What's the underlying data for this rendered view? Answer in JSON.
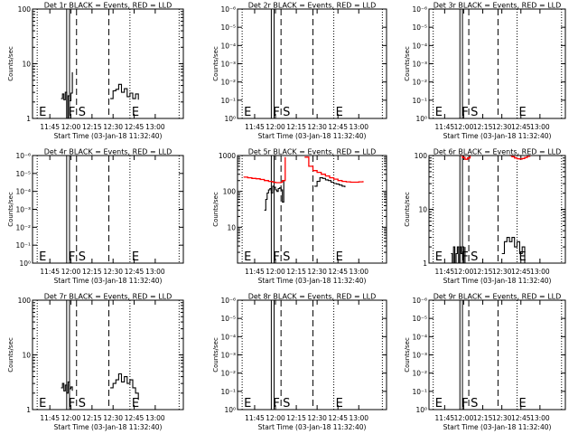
{
  "figure": {
    "x_tick_labels": [
      "11:45",
      "12:00",
      "12:15",
      "12:30",
      "12:45",
      "13:00"
    ],
    "x_label": "Start Time (03-Jan-18 11:32:40)",
    "y_label": "Counts/sec",
    "colors": {
      "events": "#000000",
      "lld": "#ff0000",
      "axes": "#000000",
      "background": "#ffffff"
    }
  },
  "chart_data": [
    {
      "type": "line",
      "title": "Det 1r BLACK = Events, RED = LLD",
      "y_scale": "log",
      "y_ticks": [
        "1",
        "10",
        "100"
      ],
      "ylim": [
        1,
        100
      ],
      "markers": [
        {
          "label": "E",
          "time": "11:36",
          "style": "dotted"
        },
        {
          "label": "F",
          "time": "11:57",
          "style": "solid"
        },
        {
          "label": "",
          "time": "11:59",
          "style": "solid"
        },
        {
          "label": "S",
          "time": "12:04",
          "style": "dashed"
        },
        {
          "label": "",
          "time": "12:27",
          "style": "dashed"
        },
        {
          "label": "E",
          "time": "12:42",
          "style": "dotted"
        },
        {
          "label": "",
          "time": "13:17",
          "style": "dotted"
        }
      ],
      "series": [
        {
          "color": "#000000",
          "segments": [
            {
              "x": [
                "11:53",
                "11:54",
                "11:55",
                "11:56",
                "11:57",
                "11:58",
                "11:59",
                "12:00",
                "12:01"
              ],
              "y": [
                2.3,
                2.8,
                2.2,
                3.0,
                1.0,
                2.6,
                2.1,
                2.9,
                7.0
              ]
            },
            {
              "x": [
                "12:28",
                "12:30",
                "12:32",
                "12:34",
                "12:36",
                "12:38",
                "12:40",
                "12:42",
                "12:44",
                "12:46",
                "12:48"
              ],
              "y": [
                2.3,
                3.2,
                3.4,
                4.2,
                3.0,
                3.5,
                2.5,
                2.9,
                2.3,
                2.8,
                2.2
              ]
            }
          ]
        }
      ]
    },
    {
      "type": "line",
      "title": "Det 2r BLACK = Events, RED = LLD",
      "y_scale": "log",
      "y_ticks": [
        "10⁰",
        "10⁻¹",
        "10⁻²",
        "10⁻³",
        "10⁻⁴",
        "10⁻⁵",
        "10⁻⁶"
      ],
      "markers": [
        {
          "label": "E",
          "time": "11:36",
          "style": "dotted"
        },
        {
          "label": "F",
          "time": "11:57",
          "style": "solid"
        },
        {
          "label": "",
          "time": "11:59",
          "style": "solid"
        },
        {
          "label": "S",
          "time": "12:04",
          "style": "dashed"
        },
        {
          "label": "",
          "time": "12:27",
          "style": "dashed"
        },
        {
          "label": "E",
          "time": "12:42",
          "style": "dotted"
        },
        {
          "label": "",
          "time": "13:17",
          "style": "dotted"
        }
      ],
      "series": []
    },
    {
      "type": "line",
      "title": "Det 3r BLACK = Events, RED = LLD",
      "y_scale": "log",
      "y_ticks": [
        "10⁰",
        "10⁻¹",
        "10⁻²",
        "10⁻³",
        "10⁻⁴",
        "10⁻⁵",
        "10⁻⁶"
      ],
      "markers": [
        {
          "label": "E",
          "time": "11:36",
          "style": "dotted"
        },
        {
          "label": "F",
          "time": "11:57",
          "style": "solid"
        },
        {
          "label": "",
          "time": "11:59",
          "style": "solid"
        },
        {
          "label": "S",
          "time": "12:04",
          "style": "dashed"
        },
        {
          "label": "",
          "time": "12:27",
          "style": "dashed"
        },
        {
          "label": "E",
          "time": "12:42",
          "style": "dotted"
        },
        {
          "label": "",
          "time": "13:17",
          "style": "dotted"
        }
      ],
      "series": []
    },
    {
      "type": "line",
      "title": "Det 4r BLACK = Events, RED = LLD",
      "y_scale": "log",
      "y_ticks": [
        "10⁰",
        "10⁻¹",
        "10⁻²",
        "10⁻³",
        "10⁻⁴",
        "10⁻⁵",
        "10⁻⁶"
      ],
      "markers": [
        {
          "label": "E",
          "time": "11:36",
          "style": "dotted"
        },
        {
          "label": "F",
          "time": "11:57",
          "style": "solid"
        },
        {
          "label": "",
          "time": "11:59",
          "style": "solid"
        },
        {
          "label": "S",
          "time": "12:04",
          "style": "dashed"
        },
        {
          "label": "",
          "time": "12:27",
          "style": "dashed"
        },
        {
          "label": "E",
          "time": "12:42",
          "style": "dotted"
        },
        {
          "label": "",
          "time": "13:17",
          "style": "dotted"
        }
      ],
      "series": []
    },
    {
      "type": "line",
      "title": "Det 5r BLACK = Events, RED = LLD",
      "y_scale": "log",
      "y_ticks": [
        "10",
        "100",
        "1000"
      ],
      "ylim": [
        1,
        1000
      ],
      "markers": [
        {
          "label": "E",
          "time": "11:36",
          "style": "dotted"
        },
        {
          "label": "F",
          "time": "11:57",
          "style": "solid"
        },
        {
          "label": "",
          "time": "11:59",
          "style": "solid"
        },
        {
          "label": "S",
          "time": "12:04",
          "style": "dashed"
        },
        {
          "label": "",
          "time": "12:27",
          "style": "dashed"
        },
        {
          "label": "E",
          "time": "12:42",
          "style": "dotted"
        },
        {
          "label": "",
          "time": "13:17",
          "style": "dotted"
        }
      ],
      "series": [
        {
          "color": "#000000",
          "segments": [
            {
              "x": [
                "11:52",
                "11:53",
                "11:54",
                "11:55",
                "11:56",
                "11:57",
                "11:58",
                "11:59",
                "12:00",
                "12:01",
                "12:02",
                "12:03",
                "12:04",
                "12:05",
                "12:06"
              ],
              "y": [
                30,
                60,
                90,
                110,
                120,
                90,
                140,
                130,
                110,
                100,
                120,
                125,
                110,
                50,
                200
              ]
            },
            {
              "x": [
                "12:28",
                "12:30",
                "12:32",
                "12:34",
                "12:36",
                "12:38",
                "12:40",
                "12:42",
                "12:44",
                "12:46",
                "12:48",
                "12:50"
              ],
              "y": [
                140,
                190,
                240,
                230,
                210,
                200,
                180,
                165,
                160,
                150,
                140,
                130
              ]
            }
          ]
        },
        {
          "color": "#ff0000",
          "segments": [
            {
              "x": [
                "11:37",
                "11:40",
                "11:43",
                "11:46",
                "11:49",
                "11:52",
                "11:55",
                "11:58",
                "12:00",
                "12:02",
                "12:04",
                "12:05",
                "12:07"
              ],
              "y": [
                250,
                240,
                230,
                225,
                215,
                200,
                190,
                180,
                175,
                175,
                180,
                200,
                900
              ]
            },
            {
              "x": [
                "12:21",
                "12:24",
                "12:27",
                "12:30",
                "12:33",
                "12:36",
                "12:39",
                "12:42",
                "12:45",
                "12:48",
                "12:51",
                "12:54",
                "12:57",
                "13:00",
                "13:03"
              ],
              "y": [
                900,
                500,
                380,
                340,
                300,
                270,
                240,
                220,
                200,
                190,
                185,
                180,
                180,
                185,
                195
              ]
            }
          ]
        }
      ]
    },
    {
      "type": "line",
      "title": "Det 6r BLACK = Events, RED = LLD",
      "y_scale": "log",
      "y_ticks": [
        "1",
        "10",
        "100"
      ],
      "ylim": [
        1,
        100
      ],
      "markers": [
        {
          "label": "E",
          "time": "11:36",
          "style": "dotted"
        },
        {
          "label": "F",
          "time": "11:57",
          "style": "solid"
        },
        {
          "label": "",
          "time": "11:59",
          "style": "solid"
        },
        {
          "label": "S",
          "time": "12:04",
          "style": "dashed"
        },
        {
          "label": "",
          "time": "12:27",
          "style": "dashed"
        },
        {
          "label": "E",
          "time": "12:42",
          "style": "dotted"
        },
        {
          "label": "",
          "time": "13:17",
          "style": "dotted"
        }
      ],
      "series": [
        {
          "color": "#000000",
          "segments": [
            {
              "x": [
                "11:50",
                "11:51",
                "11:52",
                "11:53",
                "11:54",
                "11:55",
                "11:56",
                "11:57",
                "11:58",
                "11:59",
                "12:00",
                "12:01"
              ],
              "y": [
                1.5,
                1.0,
                2.0,
                1.0,
                1.5,
                2.0,
                1.0,
                2.0,
                1.5,
                2.0,
                1.0,
                2.0
              ]
            },
            {
              "x": [
                "12:30",
                "12:32",
                "12:34",
                "12:36",
                "12:38",
                "12:40",
                "12:42",
                "12:44",
                "12:46",
                "12:48"
              ],
              "y": [
                1.5,
                2.5,
                3.0,
                2.5,
                3.0,
                2.0,
                2.5,
                1.5,
                2.0,
                1.0
              ]
            }
          ]
        },
        {
          "color": "#ff0000",
          "segments": [
            {
              "x": [
                "11:57",
                "11:59",
                "12:01",
                "12:03",
                "12:05"
              ],
              "y": [
                100,
                92,
                85,
                90,
                100
              ]
            },
            {
              "x": [
                "12:36",
                "12:38",
                "12:40",
                "12:42",
                "12:44",
                "12:46",
                "12:48",
                "12:50",
                "12:52"
              ],
              "y": [
                100,
                95,
                90,
                87,
                86,
                88,
                92,
                97,
                100
              ]
            }
          ]
        }
      ]
    },
    {
      "type": "line",
      "title": "Det 7r BLACK = Events, RED = LLD",
      "y_scale": "log",
      "y_ticks": [
        "1",
        "10",
        "100"
      ],
      "ylim": [
        1,
        100
      ],
      "markers": [
        {
          "label": "E",
          "time": "11:36",
          "style": "dotted"
        },
        {
          "label": "F",
          "time": "11:57",
          "style": "solid"
        },
        {
          "label": "",
          "time": "11:59",
          "style": "solid"
        },
        {
          "label": "S",
          "time": "12:04",
          "style": "dashed"
        },
        {
          "label": "",
          "time": "12:27",
          "style": "dashed"
        },
        {
          "label": "E",
          "time": "12:42",
          "style": "dotted"
        },
        {
          "label": "",
          "time": "13:17",
          "style": "dotted"
        }
      ],
      "series": [
        {
          "color": "#000000",
          "segments": [
            {
              "x": [
                "11:53",
                "11:54",
                "11:55",
                "11:56",
                "11:57",
                "11:58",
                "11:59",
                "12:00",
                "12:01"
              ],
              "y": [
                2.5,
                3.0,
                2.2,
                2.8,
                2.0,
                3.2,
                2.4,
                2.6,
                2.2
              ]
            },
            {
              "x": [
                "12:28",
                "12:30",
                "12:32",
                "12:34",
                "12:36",
                "12:38",
                "12:40",
                "12:42",
                "12:44",
                "12:46",
                "12:48"
              ],
              "y": [
                2.5,
                3.0,
                3.5,
                4.5,
                3.2,
                4.0,
                3.0,
                3.5,
                2.5,
                2.0,
                1.5
              ]
            }
          ]
        }
      ]
    },
    {
      "type": "line",
      "title": "Det 8r BLACK = Events, RED = LLD",
      "y_scale": "log",
      "y_ticks": [
        "10⁰",
        "10⁻¹",
        "10⁻²",
        "10⁻³",
        "10⁻⁴",
        "10⁻⁵",
        "10⁻⁶"
      ],
      "markers": [
        {
          "label": "E",
          "time": "11:36",
          "style": "dotted"
        },
        {
          "label": "F",
          "time": "11:57",
          "style": "solid"
        },
        {
          "label": "",
          "time": "11:59",
          "style": "solid"
        },
        {
          "label": "S",
          "time": "12:04",
          "style": "dashed"
        },
        {
          "label": "",
          "time": "12:27",
          "style": "dashed"
        },
        {
          "label": "E",
          "time": "12:42",
          "style": "dotted"
        },
        {
          "label": "",
          "time": "13:17",
          "style": "dotted"
        }
      ],
      "series": []
    },
    {
      "type": "line",
      "title": "Det 9r BLACK = Events, RED = LLD",
      "y_scale": "log",
      "y_ticks": [
        "10⁰",
        "10⁻¹",
        "10⁻²",
        "10⁻³",
        "10⁻⁴",
        "10⁻⁵",
        "10⁻⁶"
      ],
      "markers": [
        {
          "label": "E",
          "time": "11:36",
          "style": "dotted"
        },
        {
          "label": "F",
          "time": "11:57",
          "style": "solid"
        },
        {
          "label": "",
          "time": "11:59",
          "style": "solid"
        },
        {
          "label": "S",
          "time": "12:04",
          "style": "dashed"
        },
        {
          "label": "",
          "time": "12:27",
          "style": "dashed"
        },
        {
          "label": "E",
          "time": "12:42",
          "style": "dotted"
        },
        {
          "label": "",
          "time": "13:17",
          "style": "dotted"
        }
      ],
      "series": []
    }
  ]
}
